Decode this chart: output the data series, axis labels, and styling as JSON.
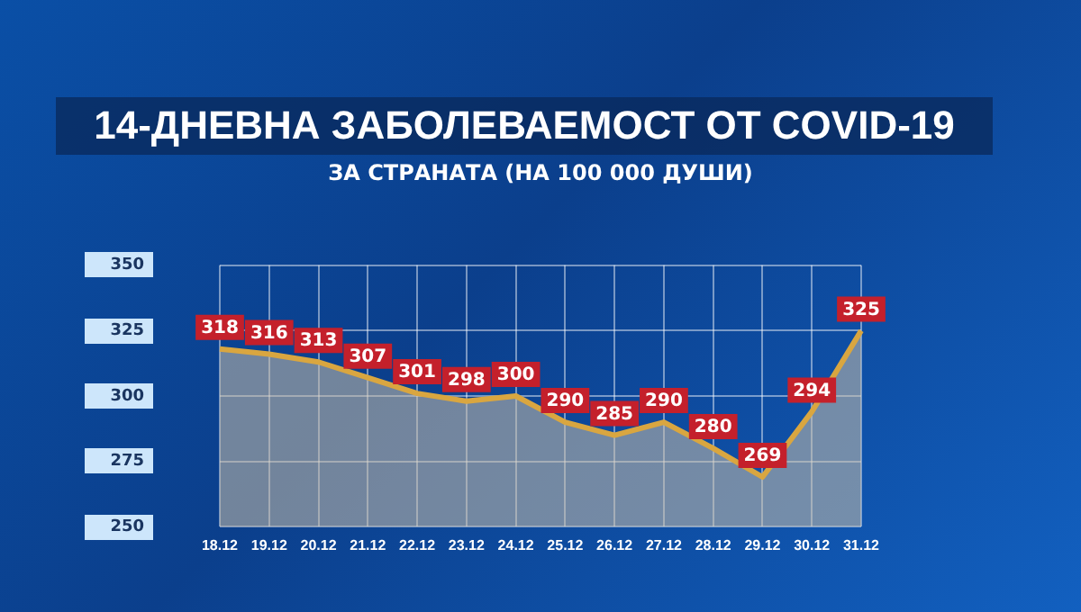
{
  "chart_data": {
    "type": "area",
    "title": "14-ДНЕВНА ЗАБОЛЕВАЕМОСТ ОТ COVID-19",
    "subtitle": "ЗА СТРАНАТА (НА 100 000 ДУШИ)",
    "categories": [
      "18.12",
      "19.12",
      "20.12",
      "21.12",
      "22.12",
      "23.12",
      "24.12",
      "25.12",
      "26.12",
      "27.12",
      "28.12",
      "29.12",
      "30.12",
      "31.12"
    ],
    "series": [
      {
        "color": "#d9a640",
        "values": [
          318,
          316,
          313,
          307,
          301,
          298,
          300,
          290,
          285,
          290,
          280,
          269,
          294,
          325
        ]
      }
    ],
    "ylim": [
      250,
      350
    ],
    "yticks": [
      250,
      275,
      300,
      325,
      350
    ],
    "grid": true,
    "legend": false,
    "marker": "none",
    "line_style": "solid",
    "data_labels": true
  }
}
